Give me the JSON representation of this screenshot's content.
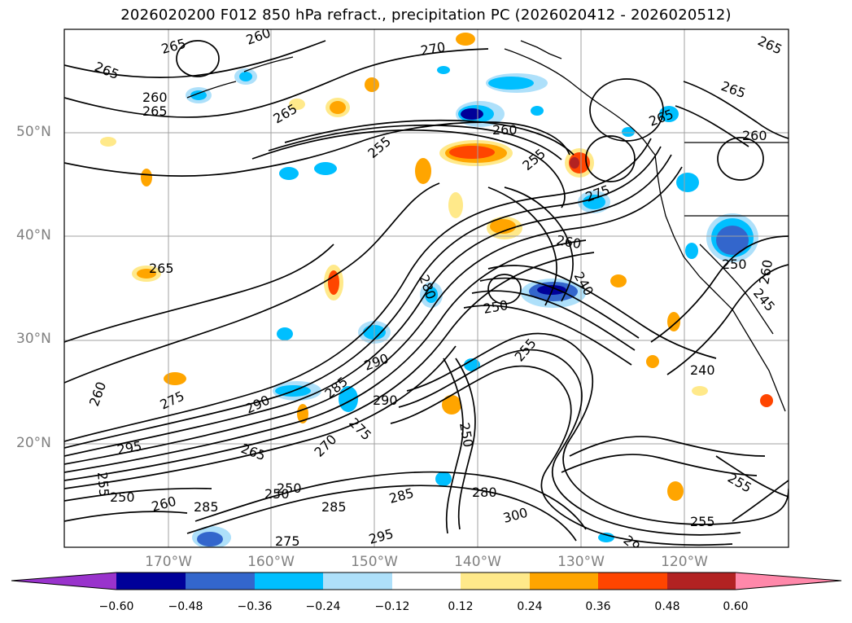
{
  "title": "2026020200 F012 850 hPa refract., precipitation PC (2026020412 - 2026020512)",
  "map": {
    "lat_labels": [
      "50°N",
      "40°N",
      "30°N",
      "20°N"
    ],
    "lon_labels": [
      "170°W",
      "160°W",
      "150°W",
      "140°W",
      "130°W",
      "120°W"
    ],
    "contour_labels": [
      "265",
      "260",
      "265",
      "270",
      "260",
      "265",
      "265",
      "260",
      "265",
      "255",
      "255",
      "260",
      "265",
      "275",
      "260",
      "265",
      "280",
      "250",
      "240",
      "250",
      "245",
      "260",
      "255",
      "290",
      "285",
      "290",
      "275",
      "290",
      "260",
      "275",
      "295",
      "265",
      "270",
      "255",
      "250",
      "250",
      "250",
      "260",
      "285",
      "285",
      "295",
      "275",
      "285",
      "280",
      "300",
      "290",
      "255",
      "240",
      "255",
      "250",
      "265"
    ]
  },
  "colorbar": {
    "tick_labels": [
      "−0.60",
      "−0.48",
      "−0.36",
      "−0.24",
      "−0.12",
      "0.12",
      "0.24",
      "0.36",
      "0.48",
      "0.60"
    ],
    "colors": [
      "#9933cc",
      "#000099",
      "#3366cc",
      "#00bfff",
      "#aee0fa",
      "#ffffff",
      "#ffe98a",
      "#ffa500",
      "#ff4500",
      "#b22222",
      "#ff88aa"
    ]
  }
}
